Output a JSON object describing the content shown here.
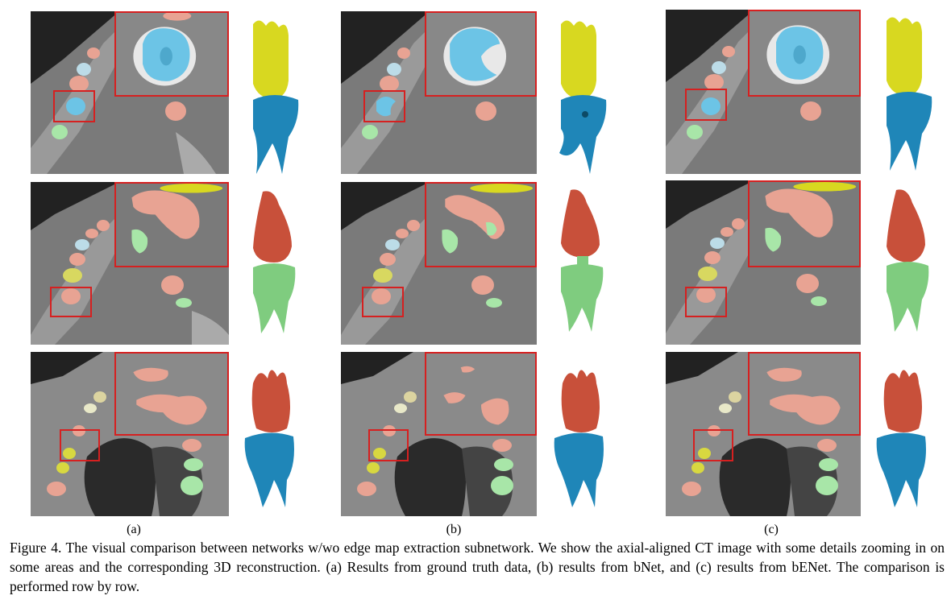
{
  "figure": {
    "columns": [
      {
        "label": "(a)",
        "name": "ground-truth"
      },
      {
        "label": "(b)",
        "name": "bnet"
      },
      {
        "label": "(c)",
        "name": "benet"
      }
    ],
    "rows": 3
  },
  "caption": {
    "text": "Figure 4. The visual comparison between networks w/wo edge map extraction subnetwork. We show the axial-aligned CT image with some details zooming in on some areas and the corresponding 3D reconstruction. (a) Results from ground truth data, (b) results from bNet, and (c) results from bENet. The comparison is performed row by row."
  },
  "colors": {
    "roi_box": "#d62020",
    "tooth_blue": "#1f86b8",
    "tooth_yellow": "#d8d820",
    "tooth_red": "#c8503a",
    "tooth_green": "#7fcc7f",
    "seg_blue": "#6cc4e6",
    "seg_salmon": "#e8a393",
    "seg_green": "#a8e6a8"
  }
}
